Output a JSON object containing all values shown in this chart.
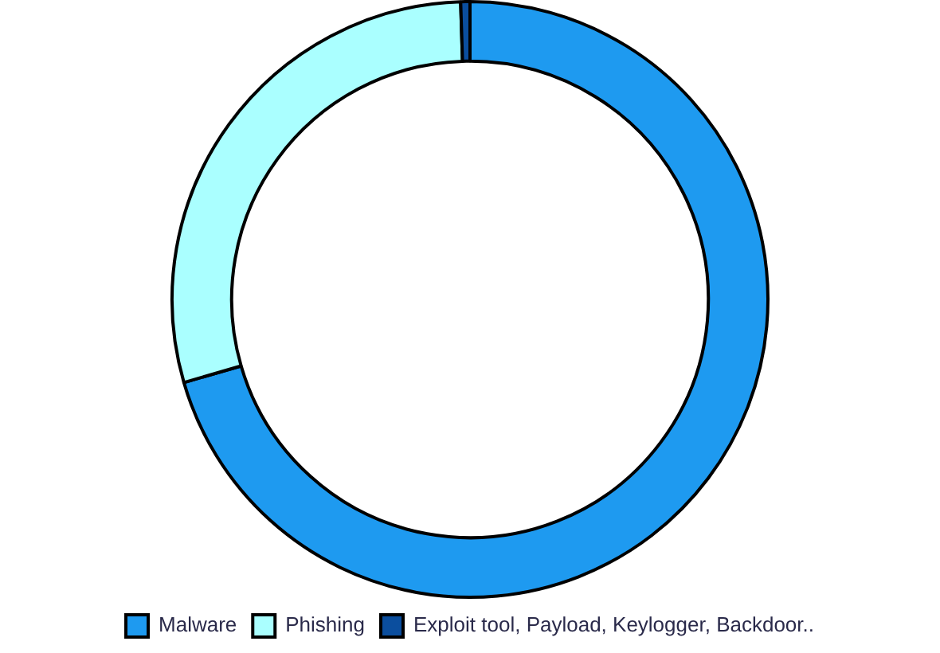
{
  "chart_data": {
    "type": "donut",
    "categories": [
      "Malware",
      "Phishing",
      "Exploit tool, Payload, Keylogger, Backdoor.."
    ],
    "values": [
      70.5,
      29,
      0.5
    ],
    "colors": [
      "#1e9af0",
      "#aaffff",
      "#0b4e9e"
    ],
    "legend": "bottom"
  }
}
